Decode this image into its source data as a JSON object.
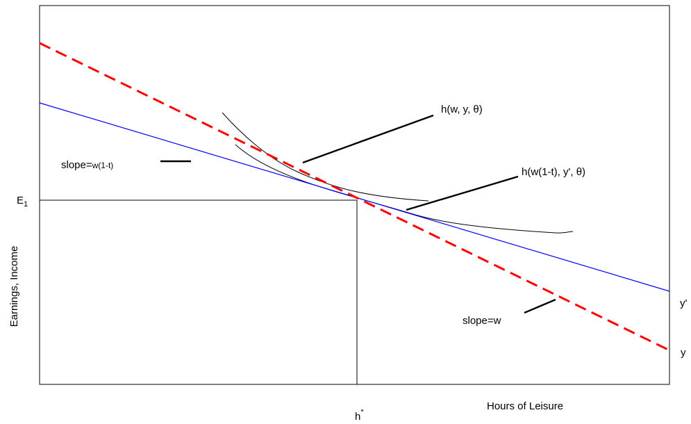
{
  "axes": {
    "y_label": "Earnings, Income",
    "x_label": "Hours of Leisure",
    "y_marker": {
      "base": "E",
      "sub": "1"
    },
    "x_marker": {
      "base": "h",
      "sup": "*"
    }
  },
  "lines": {
    "y_budget": {
      "end_label": "y",
      "slope_label": "slope=w",
      "color": "#ff0000",
      "style": "dashed"
    },
    "y_prime_budget": {
      "end_label": "y'",
      "color": "#0000ff",
      "style": "solid"
    }
  },
  "annotations": {
    "slope_after_tax": {
      "prefix": "slope=",
      "suffix": "w(1-t)"
    },
    "indifference_pre_tax": "h(w, y, θ)",
    "indifference_after_tax": "h(w(1-t), y', θ)"
  },
  "colors": {
    "frame": "#000000",
    "red_budget": "#ff0000",
    "blue_budget": "#0000ff",
    "background": "#ffffff"
  }
}
